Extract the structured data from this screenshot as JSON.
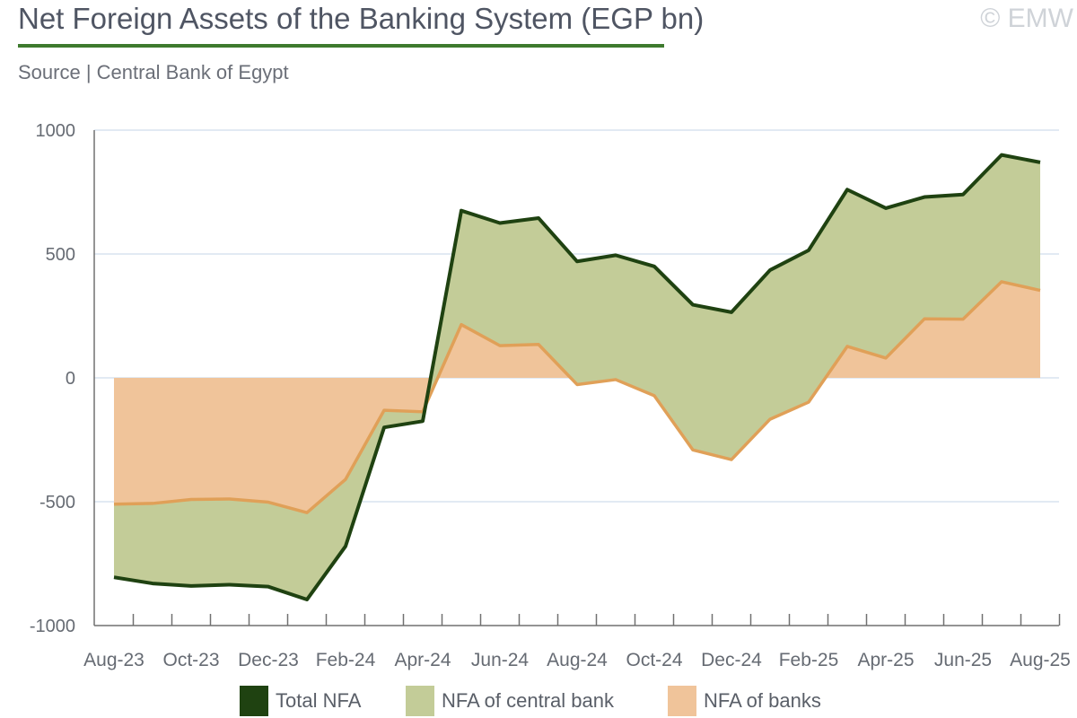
{
  "header": {
    "title": "Net Foreign Assets of the Banking System (EGP bn)",
    "watermark": "© EMW",
    "source": "Source | Central Bank of Egypt"
  },
  "colors": {
    "total": "#1f4211",
    "central_fill": "#c3cc98",
    "central_line": "#8fa556",
    "banks_fill": "#f0c49a",
    "banks_line": "#e0a058",
    "grid": "#d9e4ef",
    "axis": "#707070"
  },
  "legend": [
    {
      "label": "Total NFA",
      "color": "#1f4211"
    },
    {
      "label": "NFA of central bank",
      "color": "#c3cc98"
    },
    {
      "label": "NFA of banks",
      "color": "#f0c49a"
    }
  ],
  "chart_data": {
    "type": "area",
    "title": "Net Foreign Assets of the Banking System (EGP bn)",
    "x": [
      "Aug-23",
      "Sep-23",
      "Oct-23",
      "Nov-23",
      "Dec-23",
      "Jan-24",
      "Feb-24",
      "Mar-24",
      "Apr-24",
      "May-24",
      "Jun-24",
      "Jul-24",
      "Aug-24",
      "Sep-24",
      "Oct-24",
      "Nov-24",
      "Dec-24",
      "Jan-25",
      "Feb-25",
      "Mar-25",
      "Apr-25",
      "May-25",
      "Jun-25",
      "Jul-25",
      "Aug-25"
    ],
    "x_tick_labels": [
      "Aug-23",
      "Oct-23",
      "Dec-23",
      "Feb-24",
      "Apr-24",
      "Jun-24",
      "Aug-24",
      "Oct-24",
      "Dec-24",
      "Feb-25",
      "Apr-25",
      "Jun-25",
      "Aug-25"
    ],
    "series": [
      {
        "name": "Total NFA",
        "style": "line",
        "values": [
          -805,
          -830,
          -840,
          -835,
          -843,
          -895,
          -680,
          -200,
          -175,
          675,
          625,
          645,
          470,
          495,
          450,
          295,
          265,
          435,
          515,
          760,
          685,
          730,
          740,
          900,
          870
        ]
      },
      {
        "name": "NFA of central bank",
        "style": "area",
        "values": [
          -295,
          -323,
          -349,
          -346,
          -341,
          -351,
          -270,
          -69,
          -38,
          460,
          495,
          510,
          497,
          502,
          522,
          586,
          595,
          602,
          613,
          633,
          605,
          492,
          503,
          512,
          517
        ]
      },
      {
        "name": "NFA of banks",
        "style": "area",
        "values": [
          -510,
          -507,
          -491,
          -489,
          -502,
          -544,
          -410,
          -131,
          -137,
          215,
          130,
          135,
          -27,
          -7,
          -72,
          -291,
          -330,
          -167,
          -98,
          127,
          80,
          238,
          237,
          388,
          353
        ]
      }
    ],
    "ylim": [
      -1000,
      1000
    ],
    "y_ticks": [
      1000,
      500,
      0,
      -500,
      -1000
    ],
    "grid": true,
    "legend_position": "bottom"
  }
}
